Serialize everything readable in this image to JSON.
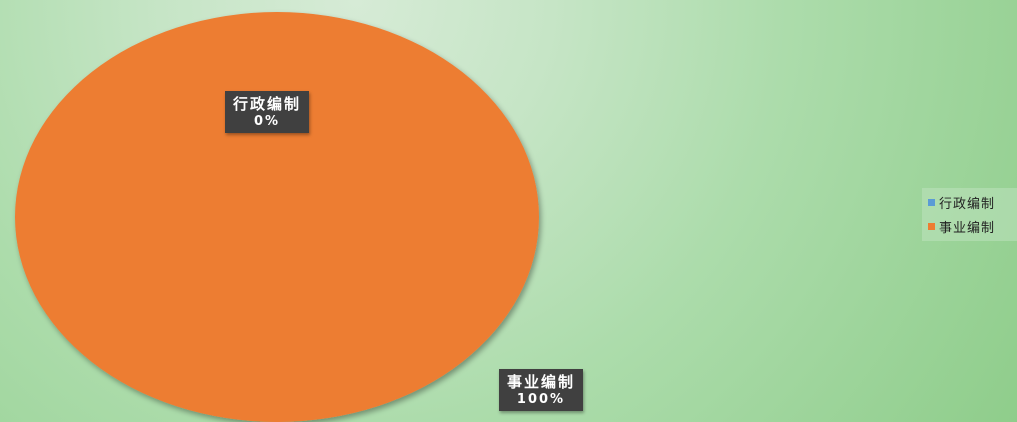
{
  "chart_data": {
    "type": "pie",
    "title": "",
    "categories": [
      "行政编制",
      "事业编制"
    ],
    "values": [
      0,
      100
    ],
    "data_labels": [
      {
        "name": "行政编制",
        "percent": "0%"
      },
      {
        "name": "事业编制",
        "percent": "100%"
      }
    ],
    "colors": [
      "#5b9bd5",
      "#ed7d31"
    ],
    "legend_position": "right"
  },
  "legend": {
    "items": [
      {
        "label": "行政编制",
        "color": "#5b9bd5"
      },
      {
        "label": "事业编制",
        "color": "#ed7d31"
      }
    ]
  }
}
